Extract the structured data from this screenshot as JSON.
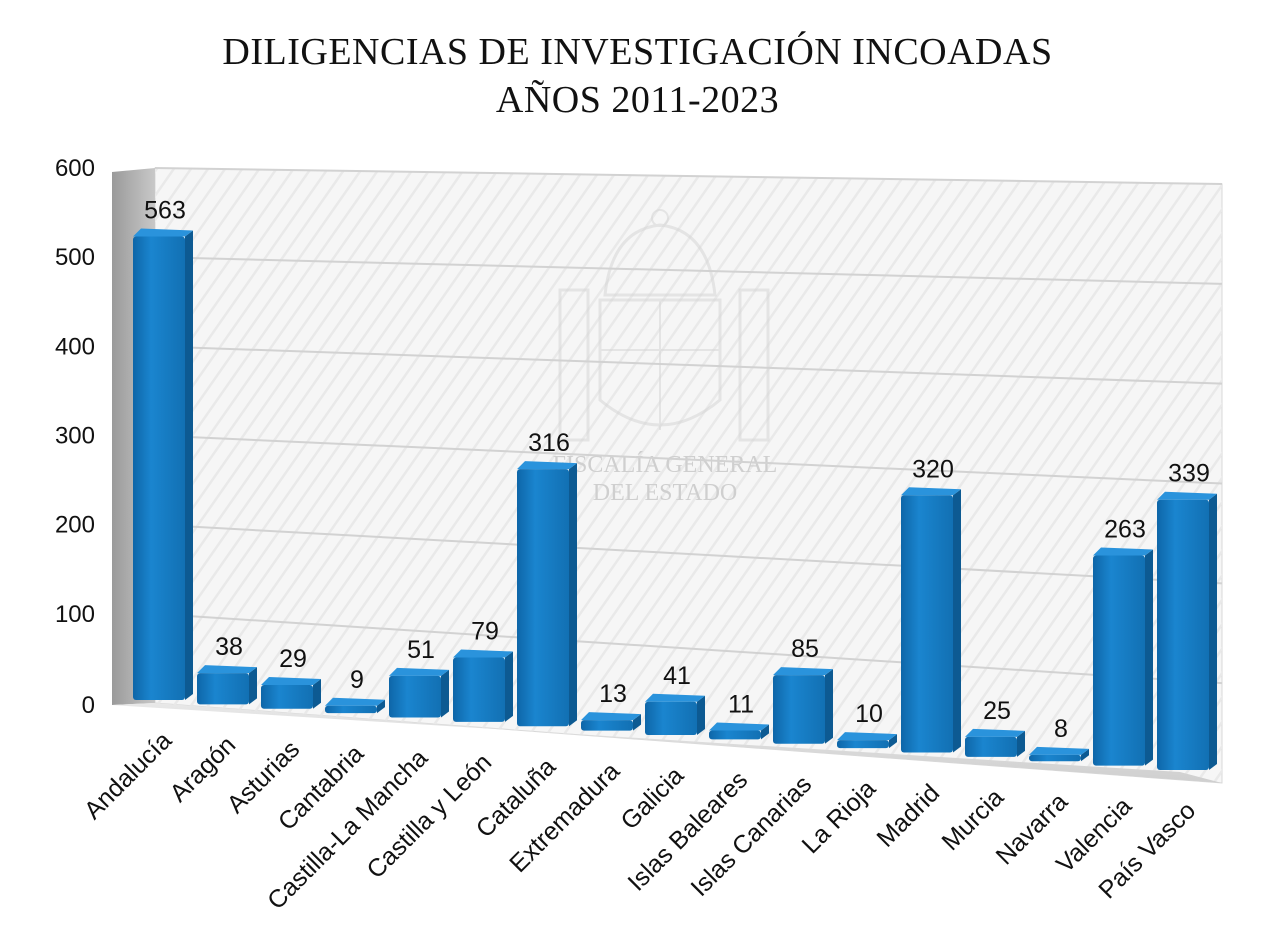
{
  "chart_data": {
    "type": "bar",
    "title": [
      "DILIGENCIAS DE INVESTIGACIÓN INCOADAS",
      "AÑOS 2011-2023"
    ],
    "categories": [
      "Andalucía",
      "Aragón",
      "Asturias",
      "Cantabria",
      "Castilla-La Mancha",
      "Castilla y León",
      "Cataluña",
      "Extremadura",
      "Galicia",
      "Islas Baleares",
      "Islas Canarias",
      "La Rioja",
      "Madrid",
      "Murcia",
      "Navarra",
      "Valencia",
      "País Vasco"
    ],
    "values": [
      563,
      38,
      29,
      9,
      51,
      79,
      316,
      13,
      41,
      11,
      85,
      10,
      320,
      25,
      8,
      263,
      339
    ],
    "ylim": [
      0,
      600
    ],
    "yticks": [
      0,
      100,
      200,
      300,
      400,
      500,
      600
    ],
    "grid": true,
    "legend": false,
    "style": "3d-perspective",
    "bar_color": "#1677bd",
    "bar_color_dark": "#0d5a92",
    "watermark": [
      "FISCALÍA GENERAL",
      "DEL ESTADO"
    ]
  }
}
